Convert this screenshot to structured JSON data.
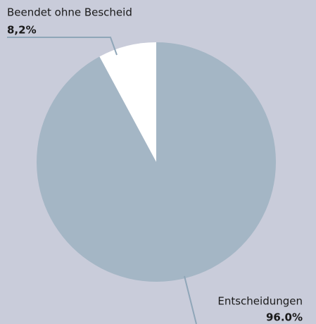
{
  "chart_data": {
    "type": "pie",
    "categories": [
      "Beendet ohne Bescheid",
      "Entscheidungen"
    ],
    "values": [
      8.2,
      96.0
    ],
    "value_labels": [
      "8,2%",
      "96.0%"
    ],
    "colors": [
      "#ffffff",
      "#a4b6c5"
    ]
  }
}
